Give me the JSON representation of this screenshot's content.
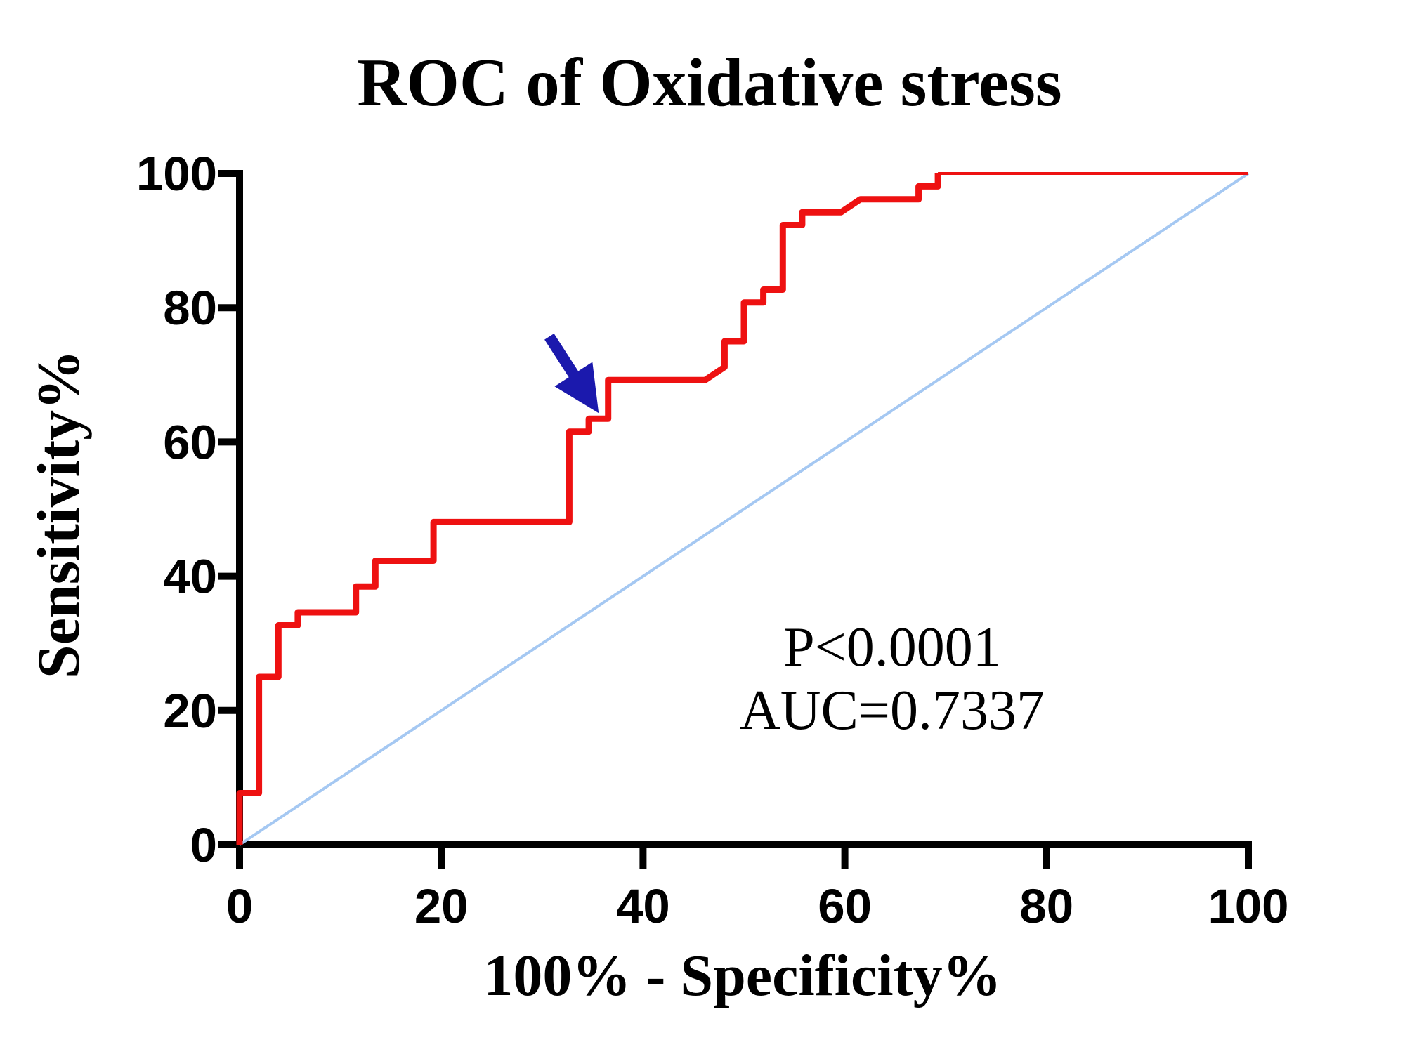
{
  "figure": {
    "title": "ROC of Oxidative stress",
    "x_axis_label": "100% - Specificity%",
    "y_axis_label": "Sensitivity%"
  },
  "chart_data": {
    "type": "line",
    "title": "ROC of Oxidative stress",
    "xlabel": "100% - Specificity%",
    "ylabel": "Sensitivity%",
    "xlim": [
      0,
      100
    ],
    "ylim": [
      0,
      100
    ],
    "grid": false,
    "legend": "none",
    "x_ticks": [
      0,
      20,
      40,
      60,
      80,
      100
    ],
    "y_ticks": [
      0,
      20,
      40,
      60,
      80,
      100
    ],
    "p_value_text": "P<0.0001",
    "auc_text": "AUC=0.7337",
    "auc": 0.7337,
    "series": [
      {
        "name": "ROC curve (Oxidative stress)",
        "color": "#ee1111",
        "stroke_width": 9,
        "points": [
          [
            0,
            0
          ],
          [
            0,
            7.69
          ],
          [
            1.92,
            7.69
          ],
          [
            1.92,
            25.0
          ],
          [
            3.85,
            25.0
          ],
          [
            3.85,
            32.69
          ],
          [
            5.77,
            32.69
          ],
          [
            5.77,
            34.62
          ],
          [
            11.54,
            34.62
          ],
          [
            11.54,
            38.46
          ],
          [
            13.46,
            38.46
          ],
          [
            13.46,
            42.31
          ],
          [
            19.23,
            42.31
          ],
          [
            19.23,
            48.08
          ],
          [
            32.69,
            48.08
          ],
          [
            32.69,
            61.54
          ],
          [
            34.62,
            61.54
          ],
          [
            34.62,
            63.46
          ],
          [
            36.54,
            63.46
          ],
          [
            36.54,
            69.23
          ],
          [
            46.15,
            69.23
          ],
          [
            48.08,
            71.15
          ],
          [
            48.08,
            75.0
          ],
          [
            50.0,
            75.0
          ],
          [
            50.0,
            80.77
          ],
          [
            51.92,
            80.77
          ],
          [
            51.92,
            82.69
          ],
          [
            53.85,
            82.69
          ],
          [
            53.85,
            92.31
          ],
          [
            55.77,
            92.31
          ],
          [
            55.77,
            94.23
          ],
          [
            59.62,
            94.23
          ],
          [
            61.54,
            96.15
          ],
          [
            67.31,
            96.15
          ],
          [
            67.31,
            98.08
          ],
          [
            69.23,
            98.08
          ],
          [
            69.23,
            100
          ]
        ]
      },
      {
        "name": "ROC curve top extension",
        "color": "#ee1111",
        "stroke_width": 4,
        "points": [
          [
            69.23,
            100
          ],
          [
            100,
            100
          ]
        ]
      },
      {
        "name": "Identity reference line",
        "color": "#a5c8f2",
        "stroke_width": 4,
        "points": [
          [
            0,
            0
          ],
          [
            100,
            100
          ]
        ]
      }
    ],
    "arrow": {
      "name": "cutoff-pointer",
      "color": "#1b19ad",
      "tail": [
        30.7,
        75.7
      ],
      "tip": [
        35.6,
        64.3
      ]
    },
    "axis_color": "#000000",
    "background_color": "#ffffff"
  }
}
